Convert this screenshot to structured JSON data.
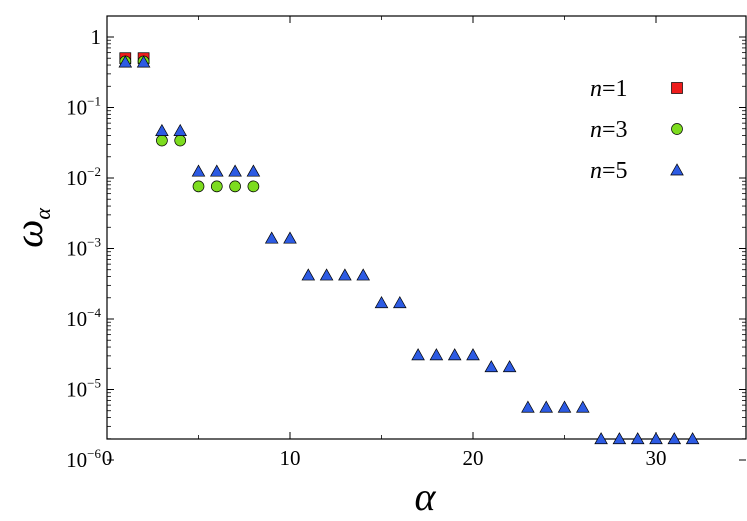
{
  "chart_data": {
    "type": "scatter",
    "title": "",
    "xlabel": "α",
    "ylabel_main": "ω",
    "ylabel_sub": "α",
    "xlim": [
      0,
      35
    ],
    "ylim": [
      1e-06,
      1
    ],
    "yscale": "log",
    "grid": false,
    "legend_position": "top-right",
    "x_ticks": [
      {
        "value": 0,
        "label": "0"
      },
      {
        "value": 10,
        "label": "10"
      },
      {
        "value": 20,
        "label": "20"
      },
      {
        "value": 30,
        "label": "30"
      }
    ],
    "y_ticks": [
      {
        "value": 1,
        "base": "1",
        "exp": ""
      },
      {
        "value": 0.1,
        "base": "10",
        "exp": "−1"
      },
      {
        "value": 0.01,
        "base": "10",
        "exp": "−2"
      },
      {
        "value": 0.001,
        "base": "10",
        "exp": "−3"
      },
      {
        "value": 0.0001,
        "base": "10",
        "exp": "−4"
      },
      {
        "value": 1e-05,
        "base": "10",
        "exp": "−5"
      },
      {
        "value": 1e-06,
        "base": "10",
        "exp": "−6"
      }
    ],
    "series": [
      {
        "name": "n=1",
        "legend_var": "n",
        "legend_val": "=1",
        "marker": "square",
        "color": "#ee1c1c",
        "x": [
          1,
          2
        ],
        "y": [
          0.5,
          0.5
        ]
      },
      {
        "name": "n=3",
        "legend_var": "n",
        "legend_val": "=3",
        "marker": "circle",
        "color": "#7ddc1f",
        "x": [
          1,
          2,
          3,
          4,
          5,
          6,
          7,
          8
        ],
        "y": [
          0.45,
          0.45,
          0.034,
          0.034,
          0.0076,
          0.0076,
          0.0076,
          0.0076
        ]
      },
      {
        "name": "n=5",
        "legend_var": "n",
        "legend_val": "=5",
        "marker": "triangle",
        "color": "#2d5be3",
        "x": [
          1,
          2,
          3,
          4,
          5,
          6,
          7,
          8,
          9,
          10,
          11,
          12,
          13,
          14,
          15,
          16,
          17,
          18,
          19,
          20,
          21,
          22,
          23,
          24,
          25,
          26,
          27,
          28,
          29,
          30,
          31,
          32
        ],
        "y": [
          0.44,
          0.44,
          0.047,
          0.047,
          0.0125,
          0.0125,
          0.0125,
          0.0125,
          0.0014,
          0.0014,
          0.00042,
          0.00042,
          0.00042,
          0.00042,
          0.00017,
          0.00017,
          3.1e-05,
          3.1e-05,
          3.1e-05,
          3.1e-05,
          2.1e-05,
          2.1e-05,
          5.6e-06,
          5.6e-06,
          5.6e-06,
          5.6e-06,
          2e-06,
          2e-06,
          2e-06,
          2e-06,
          2e-06,
          2e-06
        ]
      }
    ]
  }
}
